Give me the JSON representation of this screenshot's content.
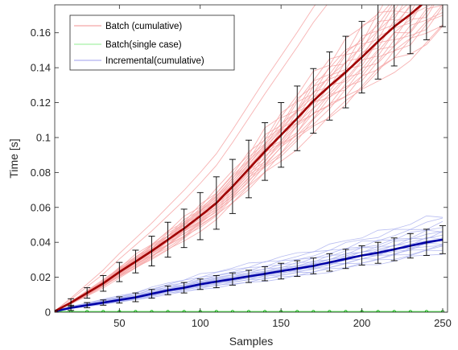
{
  "chart_data": {
    "type": "line",
    "title": "",
    "xlabel": "Samples",
    "ylabel": "Time [s]",
    "xlim": [
      10,
      253
    ],
    "ylim": [
      0,
      0.176
    ],
    "x_ticks": [
      50,
      100,
      150,
      200,
      250
    ],
    "x_tick_labels": [
      "50",
      "100",
      "150",
      "200",
      "250"
    ],
    "y_ticks": [
      0,
      0.02,
      0.04,
      0.06,
      0.08,
      0.1,
      0.12,
      0.14,
      0.16
    ],
    "y_tick_labels": [
      "0",
      "0.02",
      "0.04",
      "0.06",
      "0.08",
      "0.1",
      "0.12",
      "0.14",
      "0.16"
    ],
    "grid": false,
    "legend_position": "top-left",
    "legend": [
      {
        "label": "Batch (cumulative)",
        "color": "#f4a6a6"
      },
      {
        "label": "Batch(single case)",
        "color": "#a6f0a6"
      },
      {
        "label": "Incremental(cumulative)",
        "color": "#b0b0f0"
      }
    ],
    "colors": {
      "batch_trials": "#f6a5a5",
      "batch_mean": "#a00000",
      "single_trials": "#66ee66",
      "single_mean": "#00aa00",
      "incremental_trials": "#aab0ee",
      "incremental_mean": "#0000a8",
      "error_bar": "#000000"
    },
    "x": [
      10,
      20,
      30,
      40,
      50,
      60,
      70,
      80,
      90,
      100,
      110,
      120,
      130,
      140,
      150,
      160,
      170,
      180,
      190,
      200,
      210,
      220,
      230,
      240,
      250
    ],
    "series": [
      {
        "key": "batch",
        "mean": [
          0.0005,
          0.0055,
          0.011,
          0.0165,
          0.023,
          0.029,
          0.035,
          0.0415,
          0.048,
          0.055,
          0.0625,
          0.072,
          0.082,
          0.092,
          0.1015,
          0.111,
          0.121,
          0.1295,
          0.1375,
          0.146,
          0.155,
          0.1635,
          0.1705,
          0.1785,
          0.187
        ],
        "err": [
          0.0005,
          0.0022,
          0.003,
          0.0045,
          0.0055,
          0.0065,
          0.0085,
          0.01,
          0.011,
          0.0135,
          0.015,
          0.0155,
          0.0165,
          0.0165,
          0.0185,
          0.0185,
          0.0185,
          0.0195,
          0.0205,
          0.0205,
          0.0215,
          0.0225,
          0.0225,
          0.0225,
          0.0235
        ]
      },
      {
        "key": "incremental",
        "mean": [
          0.0005,
          0.0025,
          0.004,
          0.0055,
          0.007,
          0.0085,
          0.0105,
          0.0125,
          0.014,
          0.016,
          0.0175,
          0.019,
          0.0205,
          0.022,
          0.0235,
          0.025,
          0.0265,
          0.0285,
          0.0305,
          0.0325,
          0.034,
          0.036,
          0.038,
          0.04,
          0.0415
        ]
      },
      {
        "key": "incremental_err",
        "err": [
          0.0004,
          0.0015,
          0.0015,
          0.0015,
          0.0018,
          0.0025,
          0.0025,
          0.0025,
          0.003,
          0.003,
          0.0035,
          0.0035,
          0.0035,
          0.004,
          0.0045,
          0.0045,
          0.0045,
          0.005,
          0.0055,
          0.0055,
          0.006,
          0.0065,
          0.007,
          0.0075,
          0.008
        ]
      },
      {
        "key": "single",
        "mean": [
          0.0003,
          0.0003,
          0.0003,
          0.0003,
          0.0003,
          0.0003,
          0.0003,
          0.0003,
          0.0003,
          0.0003,
          0.0003,
          0.0003,
          0.0003,
          0.0003,
          0.0003,
          0.0003,
          0.0003,
          0.0003,
          0.0003,
          0.0003,
          0.0003,
          0.0003,
          0.0003,
          0.0003,
          0.0003
        ]
      }
    ],
    "trial_spread": {
      "batch_slope_multipliers": [
        0.86,
        0.88,
        0.9,
        0.91,
        0.92,
        0.93,
        0.94,
        0.95,
        0.96,
        0.97,
        0.98,
        0.99,
        1.0,
        1.01,
        1.02,
        1.03,
        1.04,
        1.05,
        1.06,
        1.07,
        1.08,
        1.1,
        1.12
      ],
      "batch_outliers": [
        1.35,
        1.45
      ],
      "incremental_slope_multipliers": [
        0.82,
        0.86,
        0.89,
        0.92,
        0.94,
        0.96,
        0.98,
        1.0,
        1.02,
        1.04,
        1.06,
        1.08,
        1.11,
        1.14,
        1.18,
        1.22,
        1.28,
        1.34
      ]
    }
  }
}
